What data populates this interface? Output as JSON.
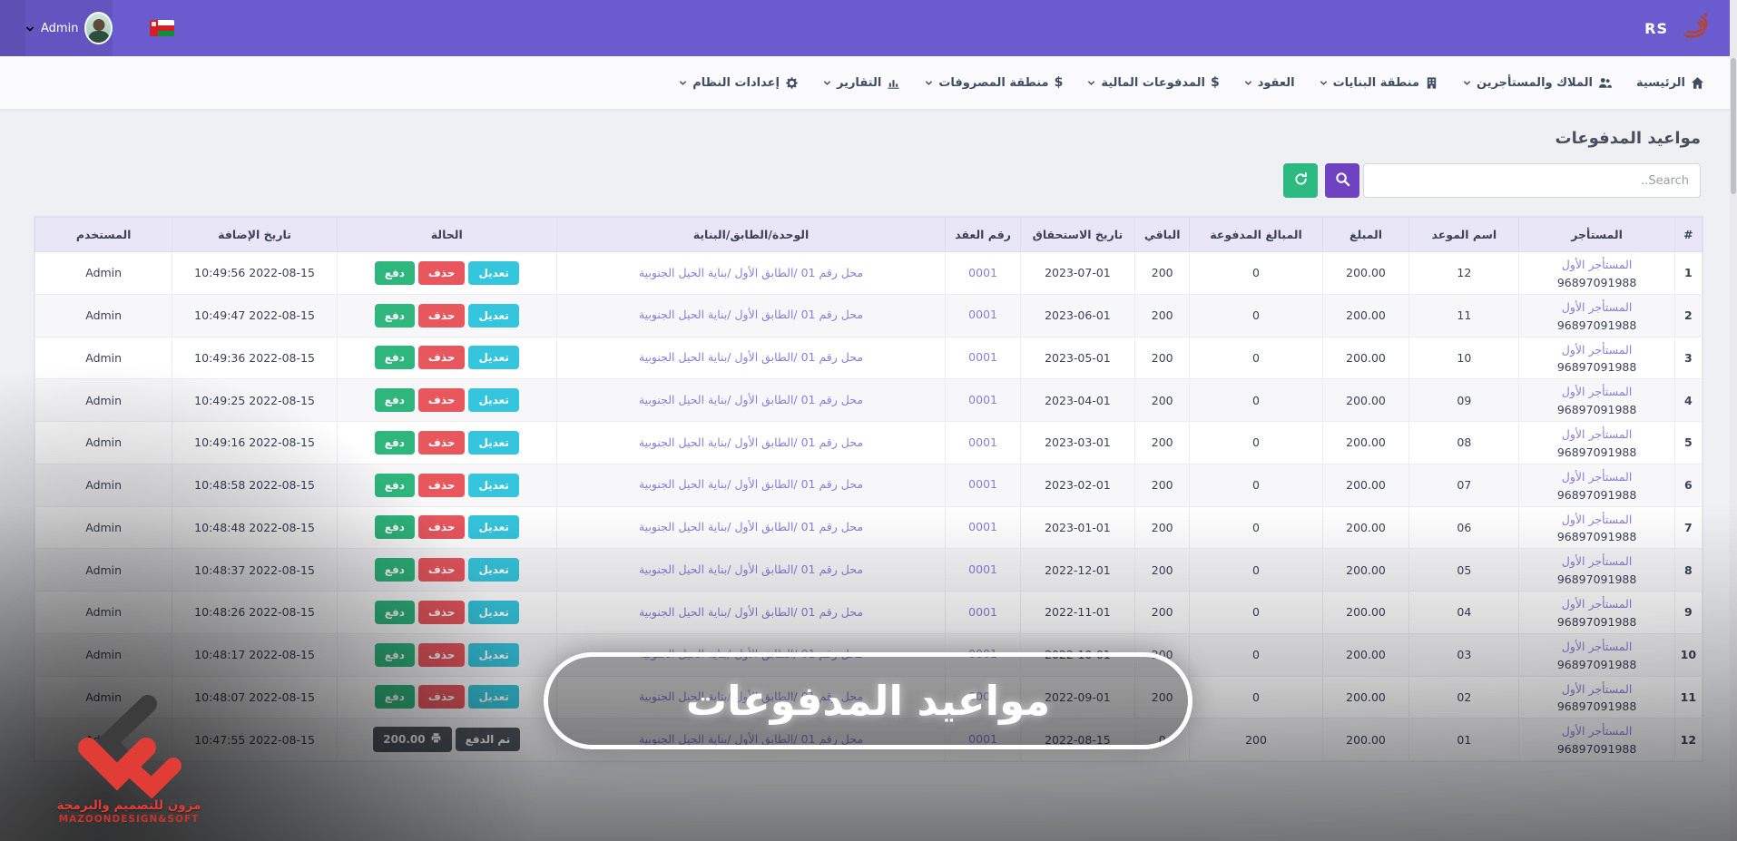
{
  "topbar": {
    "user_label": "Admin",
    "brand_text": "RS",
    "flag_icon": "oman-flag",
    "avatar_icon": "user-photo"
  },
  "nav": {
    "items": [
      {
        "id": "home",
        "label": "الرئيسية",
        "icon": "home",
        "caret": false
      },
      {
        "id": "owners-tenants",
        "label": "الملاك والمستأجرين",
        "icon": "users",
        "caret": true
      },
      {
        "id": "buildings",
        "label": "منطقة البنايات",
        "icon": "building",
        "caret": true
      },
      {
        "id": "contracts",
        "label": "العقود",
        "icon": null,
        "caret": true
      },
      {
        "id": "payments",
        "label": "المدفوعات المالية",
        "icon": "dollar",
        "caret": true
      },
      {
        "id": "expenses",
        "label": "منطقة المصروفات",
        "icon": "dollar",
        "caret": true
      },
      {
        "id": "reports",
        "label": "التقارير",
        "icon": "chart",
        "caret": true
      },
      {
        "id": "settings",
        "label": "إعدادات النظام",
        "icon": "gear",
        "caret": true
      }
    ]
  },
  "page": {
    "title": "مواعيد المدفوعات",
    "search_placeholder": "Search..",
    "search_icon": "magnifier",
    "refresh_icon": "refresh-arrows"
  },
  "actions": {
    "edit": "تعديل",
    "delete": "حذف",
    "pay": "دفع",
    "paid_label": "تم الدفع",
    "paid_amount": "200.00",
    "print_icon": "printer"
  },
  "table": {
    "columns": [
      "#",
      "المستأجر",
      "اسم الموعد",
      "المبلغ",
      "المبالغ المدفوعة",
      "الباقي",
      "تاريخ الاستحقاق",
      "رقم العقد",
      "الوحدة/الطابق/البناية",
      "الحالة",
      "تاريخ الإضافة",
      "المستخدم"
    ],
    "defaults": {
      "tenant": "المستأجر الأول",
      "phone": "96897091988",
      "amount": "200.00",
      "contract": "0001",
      "unit": "محل رقم 01 /الطابق الأول /بناية الحيل الجنوبية",
      "user": "Admin"
    },
    "rows": [
      {
        "num": "1",
        "name": "12",
        "paid": "0",
        "remaining": "200",
        "due": "2023-07-01",
        "added": "10:49:56 2022-08-15",
        "status": "pending"
      },
      {
        "num": "2",
        "name": "11",
        "paid": "0",
        "remaining": "200",
        "due": "2023-06-01",
        "added": "10:49:47 2022-08-15",
        "status": "pending"
      },
      {
        "num": "3",
        "name": "10",
        "paid": "0",
        "remaining": "200",
        "due": "2023-05-01",
        "added": "10:49:36 2022-08-15",
        "status": "pending"
      },
      {
        "num": "4",
        "name": "09",
        "paid": "0",
        "remaining": "200",
        "due": "2023-04-01",
        "added": "10:49:25 2022-08-15",
        "status": "pending"
      },
      {
        "num": "5",
        "name": "08",
        "paid": "0",
        "remaining": "200",
        "due": "2023-03-01",
        "added": "10:49:16 2022-08-15",
        "status": "pending"
      },
      {
        "num": "6",
        "name": "07",
        "paid": "0",
        "remaining": "200",
        "due": "2023-02-01",
        "added": "10:48:58 2022-08-15",
        "status": "pending"
      },
      {
        "num": "7",
        "name": "06",
        "paid": "0",
        "remaining": "200",
        "due": "2023-01-01",
        "added": "10:48:48 2022-08-15",
        "status": "pending"
      },
      {
        "num": "8",
        "name": "05",
        "paid": "0",
        "remaining": "200",
        "due": "2022-12-01",
        "added": "10:48:37 2022-08-15",
        "status": "pending"
      },
      {
        "num": "9",
        "name": "04",
        "paid": "0",
        "remaining": "200",
        "due": "2022-11-01",
        "added": "10:48:26 2022-08-15",
        "status": "pending"
      },
      {
        "num": "10",
        "name": "03",
        "paid": "0",
        "remaining": "200",
        "due": "2022-10-01",
        "added": "10:48:17 2022-08-15",
        "status": "pending"
      },
      {
        "num": "11",
        "name": "02",
        "paid": "0",
        "remaining": "200",
        "due": "2022-09-01",
        "added": "10:48:07 2022-08-15",
        "status": "pending"
      },
      {
        "num": "12",
        "name": "01",
        "paid": "200",
        "remaining": "0",
        "due": "2022-08-15",
        "added": "10:47:55 2022-08-15",
        "status": "paid"
      }
    ]
  },
  "watermark": {
    "text": "مواعيد المدفوعات"
  },
  "brand_logo": {
    "arabic": "مزون للتصميم والبرمجة",
    "latin": "MAZOONDESIGN&SOFT"
  },
  "colors": {
    "topbar": "#6a5ccf",
    "search_button": "#6f42c1",
    "refresh_button": "#2cb982",
    "edit": "#35c5dc",
    "delete": "#e8565e",
    "pay": "#2eb67d",
    "paid_dark": "#4f565e",
    "link": "#8a7ed6"
  }
}
